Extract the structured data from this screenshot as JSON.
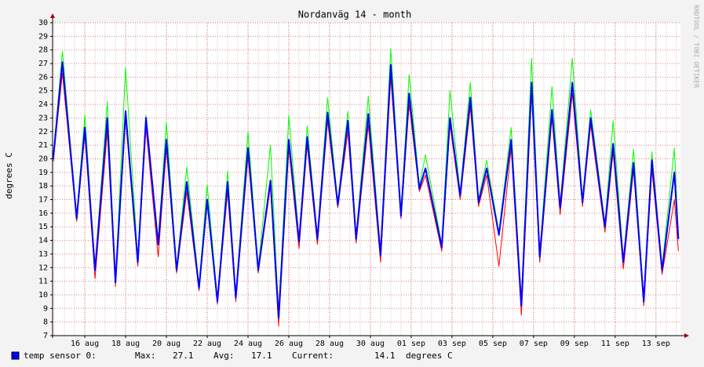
{
  "chart_data": {
    "type": "line",
    "title": "Nordanväg 14 - month",
    "y_label": "degrees C",
    "watermark": "RRDTOOL / TOBI OETIKER",
    "x": [
      14.45,
      14.9,
      15.6,
      16.0,
      16.5,
      17.1,
      17.5,
      18.0,
      18.6,
      19.0,
      19.6,
      20.0,
      20.5,
      21.0,
      21.6,
      22.0,
      22.5,
      23.0,
      23.4,
      24.0,
      24.5,
      25.1,
      25.5,
      26.0,
      26.5,
      26.9,
      27.4,
      27.9,
      28.4,
      28.9,
      29.3,
      29.9,
      30.5,
      31.0,
      31.5,
      31.9,
      32.4,
      32.7,
      33.5,
      33.9,
      34.4,
      34.9,
      35.3,
      35.7,
      36.3,
      36.9,
      37.4,
      37.9,
      38.3,
      38.9,
      39.3,
      39.9,
      40.4,
      40.8,
      41.5,
      41.9,
      42.4,
      42.9,
      43.4,
      43.8,
      44.3,
      44.9,
      45.1
    ],
    "series": [
      {
        "color": "#00ff00",
        "width": 1,
        "values": [
          20.2,
          27.9,
          15.8,
          23.2,
          12.0,
          24.2,
          11.0,
          26.7,
          12.6,
          23.2,
          14.0,
          22.7,
          12.0,
          19.4,
          10.7,
          18.1,
          9.7,
          19.1,
          10.0,
          22.0,
          12.0,
          21.0,
          8.6,
          23.2,
          14.1,
          22.4,
          14.3,
          24.5,
          16.8,
          23.5,
          14.3,
          24.6,
          13.1,
          28.1,
          16.0,
          26.2,
          18.0,
          20.3,
          13.7,
          25.0,
          17.5,
          25.6,
          17.0,
          19.9,
          14.6,
          22.3,
          9.5,
          27.4,
          13.0,
          25.3,
          16.6,
          27.4,
          17.0,
          23.6,
          15.2,
          22.8,
          12.6,
          20.7,
          9.7,
          20.5,
          12.0,
          20.8,
          14.3
        ]
      },
      {
        "color": "#ff0000",
        "width": 1,
        "values": [
          19.8,
          26.3,
          15.4,
          21.8,
          11.2,
          22.0,
          10.6,
          23.0,
          12.1,
          22.3,
          12.8,
          20.8,
          11.6,
          17.6,
          10.3,
          16.8,
          9.3,
          17.6,
          9.5,
          20.2,
          11.6,
          18.0,
          7.7,
          20.8,
          13.4,
          21.0,
          13.7,
          22.8,
          16.4,
          22.0,
          13.8,
          22.5,
          12.4,
          26.0,
          15.6,
          24.0,
          17.6,
          18.8,
          13.2,
          22.5,
          17.0,
          23.8,
          16.5,
          18.8,
          12.1,
          20.8,
          8.5,
          24.8,
          12.4,
          23.0,
          15.9,
          24.8,
          16.5,
          22.5,
          14.6,
          20.5,
          11.9,
          19.2,
          9.2,
          19.2,
          11.5,
          17.0,
          13.2
        ]
      },
      {
        "name": "temp sensor 0:",
        "color": "#0000ff",
        "width": 2,
        "values": [
          20.0,
          27.1,
          15.6,
          22.3,
          11.8,
          23.0,
          10.9,
          23.5,
          12.4,
          23.0,
          13.7,
          21.4,
          11.8,
          18.3,
          10.5,
          17.0,
          9.5,
          18.3,
          9.8,
          20.8,
          11.8,
          18.4,
          8.3,
          21.4,
          13.9,
          21.6,
          14.1,
          23.4,
          16.6,
          22.8,
          14.1,
          23.3,
          12.9,
          26.9,
          15.8,
          24.8,
          17.8,
          19.3,
          13.5,
          23.0,
          17.3,
          24.5,
          16.8,
          19.3,
          14.4,
          21.4,
          9.2,
          25.6,
          12.8,
          23.6,
          16.4,
          25.6,
          16.8,
          23.0,
          15.0,
          21.1,
          12.4,
          19.7,
          9.5,
          19.9,
          11.8,
          19.0,
          14.1
        ]
      }
    ],
    "xlim": [
      14.42,
      45.2
    ],
    "xticks": [
      {
        "value": 16,
        "label": "16 aug"
      },
      {
        "value": 18,
        "label": "18 aug"
      },
      {
        "value": 20,
        "label": "20 aug"
      },
      {
        "value": 22,
        "label": "22 aug"
      },
      {
        "value": 24,
        "label": "24 aug"
      },
      {
        "value": 26,
        "label": "26 aug"
      },
      {
        "value": 28,
        "label": "28 aug"
      },
      {
        "value": 30,
        "label": "30 aug"
      },
      {
        "value": 32,
        "label": "01 sep"
      },
      {
        "value": 34,
        "label": "03 sep"
      },
      {
        "value": 36,
        "label": "05 sep"
      },
      {
        "value": 38,
        "label": "07 sep"
      },
      {
        "value": 40,
        "label": "09 sep"
      },
      {
        "value": 42,
        "label": "11 sep"
      },
      {
        "value": 44,
        "label": "13 sep"
      }
    ],
    "ylim": [
      7,
      30
    ],
    "yticks": [
      7,
      8,
      9,
      10,
      11,
      12,
      13,
      14,
      15,
      16,
      17,
      18,
      19,
      20,
      21,
      22,
      23,
      24,
      25,
      26,
      27,
      28,
      29,
      30
    ],
    "grid": true,
    "legend_stats": {
      "max_label": "Max:",
      "max": 27.1,
      "avg_label": "Avg:",
      "avg": 17.1,
      "current_label": "Current:",
      "current": 14.1,
      "unit": "degrees C"
    }
  }
}
